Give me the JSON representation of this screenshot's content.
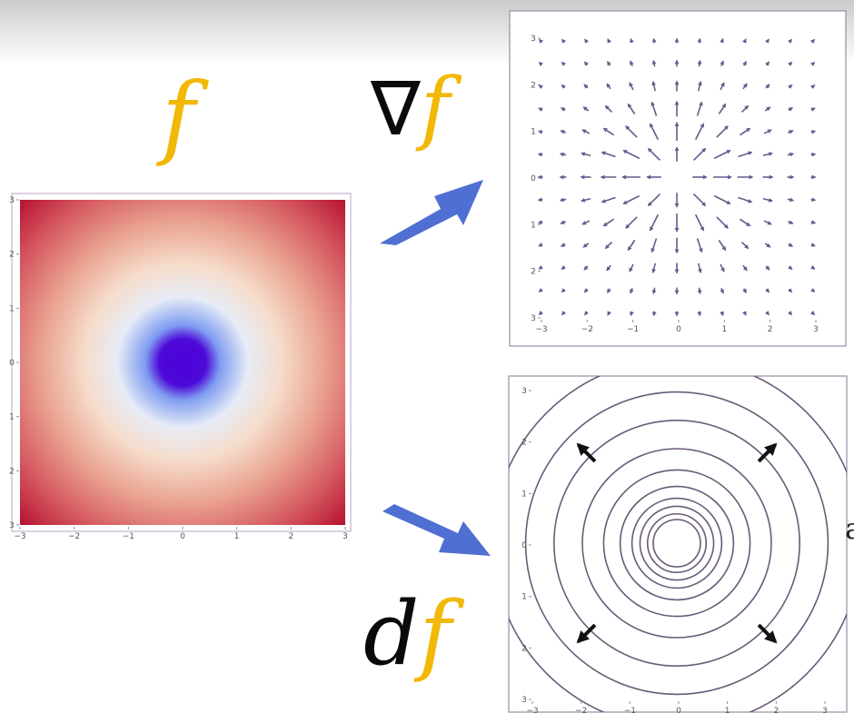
{
  "labels": {
    "f": "f",
    "gradient_symbol": "∇",
    "gradient_f": "f",
    "differential_d": "d",
    "differential_f": "f",
    "edge_glyph": "a"
  },
  "colors": {
    "f_label": "#f2b807",
    "arrow_fill": "#4f6fd3",
    "vector_color": "#5d5e8e",
    "contour_color": "#6a5a78",
    "heat_center": "#4b00d8",
    "heat_edge": "#c0102e"
  },
  "plots": {
    "density": {
      "type": "density",
      "x_ticks": [
        "−3",
        "−2",
        "−1",
        "0",
        "1",
        "2",
        "3"
      ],
      "y_ticks": [
        "3",
        "2",
        "1",
        "0",
        "1",
        "2",
        "3"
      ],
      "xlim": [
        -3,
        3
      ],
      "ylim": [
        -3,
        3
      ]
    },
    "vector_field": {
      "type": "vector-field",
      "x_ticks": [
        "−3",
        "−2",
        "−1",
        "0",
        "1",
        "2",
        "3"
      ],
      "y_ticks": [
        "3",
        "2",
        "1",
        "0",
        "1",
        "2",
        "3"
      ],
      "xlim": [
        -3,
        3
      ],
      "ylim": [
        -3,
        3
      ]
    },
    "contour": {
      "type": "contour",
      "x_ticks": [
        "−3",
        "−2",
        "−1",
        "0",
        "1",
        "2",
        "3"
      ],
      "y_ticks": [
        "3",
        "2",
        "1",
        "0",
        "1",
        "2",
        "3"
      ],
      "xlim": [
        -3,
        3
      ],
      "ylim": [
        -3,
        3
      ],
      "levels": [
        0.5,
        0.62,
        0.78,
        0.95,
        1.2,
        1.55,
        2.0,
        2.6,
        3.2,
        3.9
      ]
    }
  },
  "arrows": [
    {
      "from": "f",
      "to": "gradient",
      "icon": "arrow-right-up-icon"
    },
    {
      "from": "f",
      "to": "differential",
      "icon": "arrow-right-down-icon"
    }
  ]
}
